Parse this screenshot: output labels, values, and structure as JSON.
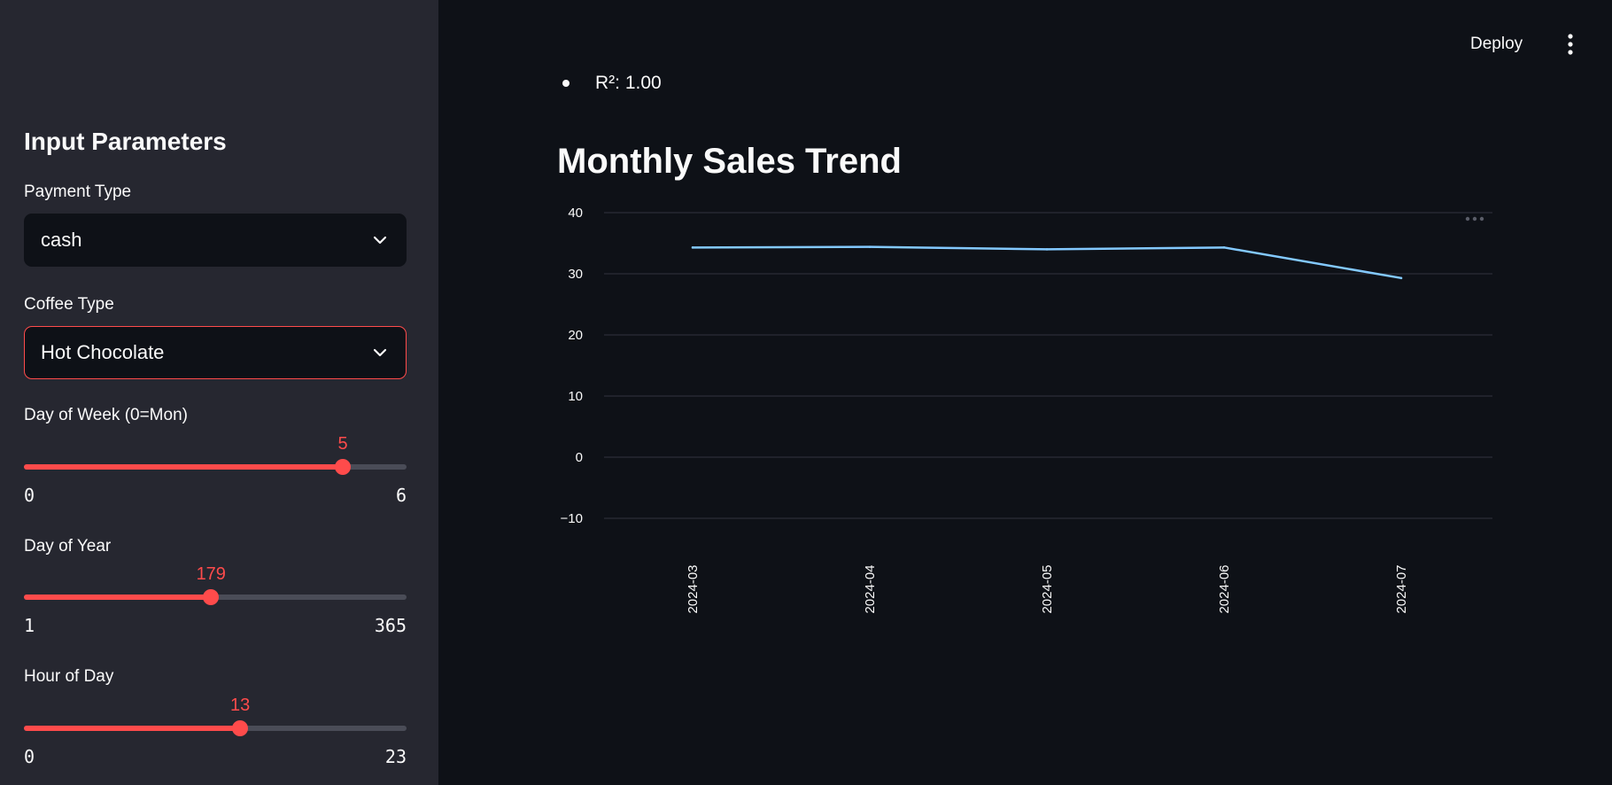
{
  "sidebar": {
    "title": "Input Parameters",
    "payment_type": {
      "label": "Payment Type",
      "value": "cash"
    },
    "coffee_type": {
      "label": "Coffee Type",
      "value": "Hot Chocolate"
    },
    "day_of_week": {
      "label": "Day of Week (0=Mon)",
      "value": "5",
      "min": "0",
      "max": "6"
    },
    "day_of_year": {
      "label": "Day of Year",
      "value": "179",
      "min": "1",
      "max": "365"
    },
    "hour_of_day": {
      "label": "Hour of Day",
      "value": "13",
      "min": "0",
      "max": "23"
    }
  },
  "header": {
    "deploy_label": "Deploy",
    "menu_icon": "kebab-menu-icon"
  },
  "main": {
    "metric_text": "R²: 1.00",
    "chart_title": "Monthly Sales Trend"
  },
  "colors": {
    "accent": "#ff4b4b",
    "sidebar_bg": "#262730",
    "main_bg": "#0e1117",
    "line": "#83c9ff"
  },
  "chart_data": {
    "type": "line",
    "x": [
      "2024-03",
      "2024-04",
      "2024-05",
      "2024-06",
      "2024-07"
    ],
    "series": [
      {
        "values": [
          34.3,
          34.4,
          34.0,
          34.3,
          29.3
        ]
      }
    ],
    "y_ticks": [
      40,
      30,
      20,
      10,
      0,
      -10
    ],
    "ylim": [
      -10,
      40
    ],
    "grid": true,
    "xlabel": "",
    "ylabel": ""
  }
}
